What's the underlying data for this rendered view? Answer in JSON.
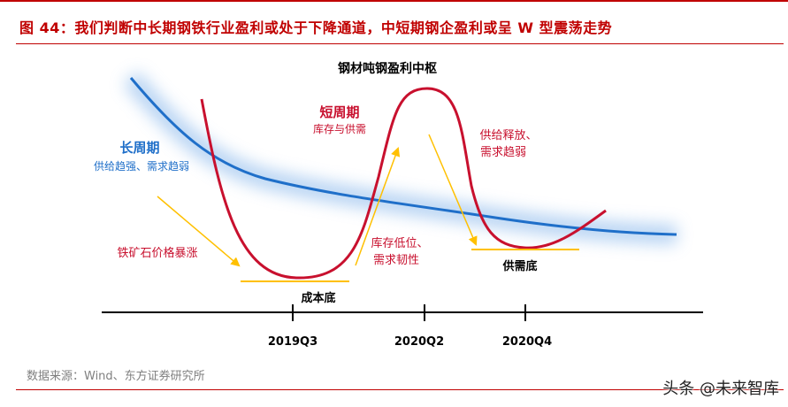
{
  "title": "图 44：我们判断中长期钢铁行业盈利或处于下降通道，中短期钢企盈利或呈 W 型震荡走势",
  "diagram": {
    "center_label": "钢材吨钢盈利中枢",
    "long_cycle": {
      "title": "长周期",
      "desc": "供给趋强、需求趋弱"
    },
    "short_cycle": {
      "title": "短周期",
      "desc": "库存与供需"
    },
    "annotation_ore": "铁矿石价格暴涨",
    "annotation_inventory_line1": "库存低位、",
    "annotation_inventory_line2": "需求韧性",
    "annotation_supply_line1": "供给释放、",
    "annotation_supply_line2": "需求趋弱",
    "bottom_cost": "成本底",
    "bottom_supply": "供需底",
    "timeline": [
      "2019Q3",
      "2020Q2",
      "2020Q4"
    ]
  },
  "colors": {
    "brand_red": "#c00000",
    "long_curve_blue": "#1f6fc9",
    "short_curve_red": "#c8102e",
    "arrow_yellow": "#ffc000",
    "label_blue": "#1f6fc9"
  },
  "source": "数据来源：Wind、东方证券研究所",
  "watermark": "头条 @未来智库"
}
